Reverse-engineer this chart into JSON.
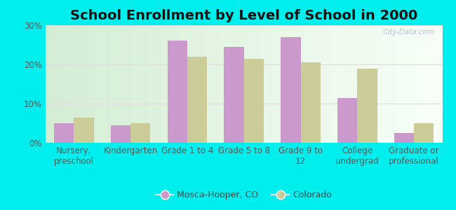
{
  "title": "School Enrollment by Level of School in 2000",
  "categories": [
    "Nursery,\npreschool",
    "Kindergarten",
    "Grade 1 to 4",
    "Grade 5 to 8",
    "Grade 9 to\n12",
    "College\nundergrad",
    "Graduate or\nprofessional"
  ],
  "mosca_values": [
    5.0,
    4.5,
    26.0,
    24.5,
    27.0,
    11.5,
    2.5
  ],
  "colorado_values": [
    6.5,
    5.0,
    22.0,
    21.5,
    20.5,
    19.0,
    5.0
  ],
  "mosca_color": "#cc99cc",
  "colorado_color": "#cccc99",
  "background_color": "#00eeee",
  "ylim": [
    0,
    30
  ],
  "yticks": [
    0,
    10,
    20,
    30
  ],
  "ytick_labels": [
    "0%",
    "10%",
    "20%",
    "30%"
  ],
  "legend_label_mosca": "Mosca-Hooper, CO",
  "legend_label_colorado": "Colorado",
  "bar_width": 0.35,
  "title_fontsize": 14,
  "tick_fontsize": 8.5,
  "legend_fontsize": 9,
  "watermark": "City-Data.com",
  "grad_colors": [
    "#c8ecd4",
    "#f0faf0",
    "#f8fff8",
    "#ffffff"
  ],
  "grid_color": "#dddddd"
}
